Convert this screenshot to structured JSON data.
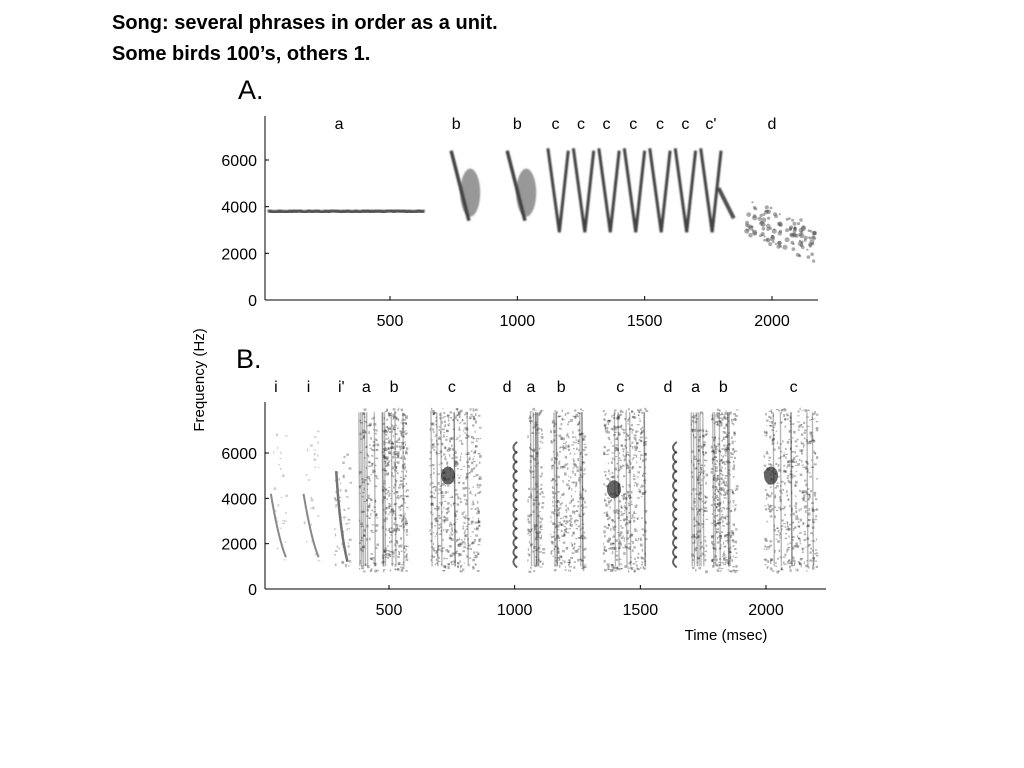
{
  "slide": {
    "line1": "Song: several phrases in order as a unit.",
    "line2": "Some birds 100’s, others 1."
  },
  "figure": {
    "y_label": "Frequency (Hz)",
    "x_label": "Time (msec)",
    "panels": [
      {
        "label": "A.",
        "x_ticks": [
          500,
          1000,
          1500,
          2000
        ],
        "y_ticks": [
          0,
          2000,
          4000,
          6000
        ],
        "syllables": [
          {
            "label": "a",
            "t": 300
          },
          {
            "label": "b",
            "t": 760
          },
          {
            "label": "b",
            "t": 1000
          },
          {
            "label": "c",
            "t": 1150
          },
          {
            "label": "c",
            "t": 1250
          },
          {
            "label": "c",
            "t": 1350
          },
          {
            "label": "c",
            "t": 1455
          },
          {
            "label": "c",
            "t": 1560
          },
          {
            "label": "c",
            "t": 1660
          },
          {
            "label": "c'",
            "t": 1760
          },
          {
            "label": "d",
            "t": 2000
          }
        ]
      },
      {
        "label": "B.",
        "x_ticks": [
          500,
          1000,
          1500,
          2000
        ],
        "y_ticks": [
          0,
          2000,
          4000,
          6000
        ],
        "syllables": [
          {
            "label": "i",
            "t": 50
          },
          {
            "label": "i",
            "t": 180
          },
          {
            "label": "i'",
            "t": 310
          },
          {
            "label": "a",
            "t": 410
          },
          {
            "label": "b",
            "t": 520
          },
          {
            "label": "c",
            "t": 750
          },
          {
            "label": "d",
            "t": 970
          },
          {
            "label": "a",
            "t": 1065
          },
          {
            "label": "b",
            "t": 1185
          },
          {
            "label": "c",
            "t": 1420
          },
          {
            "label": "d",
            "t": 1610
          },
          {
            "label": "a",
            "t": 1720
          },
          {
            "label": "b",
            "t": 1830
          },
          {
            "label": "c",
            "t": 2110
          }
        ]
      }
    ]
  }
}
